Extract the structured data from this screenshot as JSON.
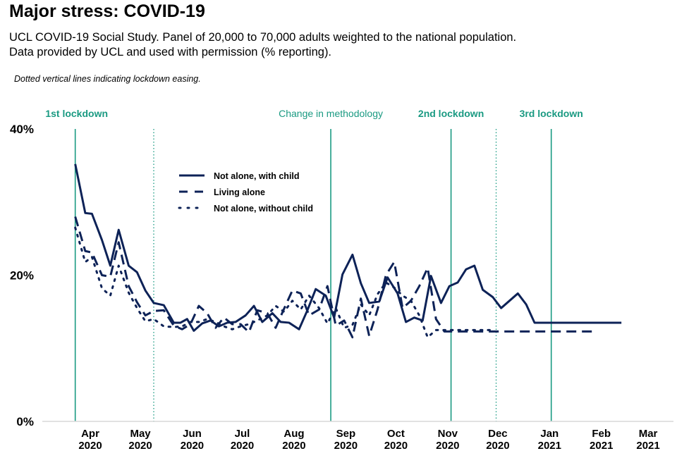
{
  "header": {
    "title": "Major stress: COVID-19",
    "subtitle_line1": "UCL COVID-19 Social Study. Panel of 20,000 to 70,000 adults weighted to the national population.",
    "subtitle_line2": "Data provided by UCL and used with permission (% reporting).",
    "note": "Dotted vertical lines indicating lockdown easing."
  },
  "colors": {
    "series": "#0d2257",
    "event_line": "#1a9a82",
    "axis": "#d9d9d9"
  },
  "chart_data": {
    "type": "line",
    "title": "Major stress: COVID-19",
    "xlabel": "",
    "ylabel": "% reporting",
    "ylim": [
      0,
      40
    ],
    "yticks": [
      {
        "value": 0,
        "label": "0%"
      },
      {
        "value": 20,
        "label": "20%"
      },
      {
        "value": 40,
        "label": "40%"
      }
    ],
    "grid": false,
    "x_unit": "days since 2020-03-01",
    "xlim": [
      10,
      390
    ],
    "xticks": [
      {
        "value": 31,
        "month": "Apr",
        "year": "2020"
      },
      {
        "value": 61,
        "month": "May",
        "year": "2020"
      },
      {
        "value": 92,
        "month": "Jun",
        "year": "2020"
      },
      {
        "value": 122,
        "month": "Jul",
        "year": "2020"
      },
      {
        "value": 153,
        "month": "Aug",
        "year": "2020"
      },
      {
        "value": 184,
        "month": "Sep",
        "year": "2020"
      },
      {
        "value": 214,
        "month": "Oct",
        "year": "2020"
      },
      {
        "value": 245,
        "month": "Nov",
        "year": "2020"
      },
      {
        "value": 275,
        "month": "Dec",
        "year": "2020"
      },
      {
        "value": 306,
        "month": "Jan",
        "year": "2021"
      },
      {
        "value": 337,
        "month": "Feb",
        "year": "2021"
      },
      {
        "value": 365,
        "month": "Mar",
        "year": "2021"
      }
    ],
    "events": [
      {
        "label": "1st lockdown",
        "x": 22,
        "style": "solid",
        "bold": true
      },
      {
        "label": "",
        "x": 69,
        "style": "dotted",
        "bold": false
      },
      {
        "label": "Change in methodology",
        "x": 175,
        "style": "solid",
        "bold": false
      },
      {
        "label": "2nd lockdown",
        "x": 247,
        "style": "solid",
        "bold": true
      },
      {
        "label": "",
        "x": 274,
        "style": "dotted",
        "bold": false
      },
      {
        "label": "3rd lockdown",
        "x": 307,
        "style": "solid",
        "bold": true
      }
    ],
    "legend_placement": "top-left",
    "series": [
      {
        "name": "Not alone, with child",
        "dash": "solid",
        "x": [
          22,
          28,
          32,
          38,
          43,
          48,
          54,
          59,
          64,
          69,
          75,
          81,
          85,
          89,
          93,
          98,
          103,
          108,
          113,
          118,
          124,
          129,
          134,
          140,
          145,
          150,
          156,
          161,
          166,
          172,
          177,
          182,
          188,
          193,
          198,
          204,
          209,
          215,
          220,
          225,
          230,
          235,
          241,
          246,
          251,
          256,
          261,
          266,
          272,
          277,
          282,
          287,
          292,
          297,
          302,
          307,
          313,
          318,
          323,
          329,
          334,
          339,
          344,
          349
        ],
        "values": [
          35.2,
          28.5,
          28.4,
          24.8,
          21.3,
          26.2,
          21.3,
          20.4,
          17.9,
          16.2,
          15.9,
          13.5,
          13.5,
          14.0,
          12.4,
          13.4,
          13.8,
          13.0,
          13.5,
          13.6,
          14.5,
          15.8,
          13.6,
          14.8,
          13.6,
          13.5,
          12.6,
          15.2,
          18.1,
          17.2,
          14.2,
          20.1,
          22.8,
          18.9,
          16.2,
          16.4,
          19.7,
          17.5,
          13.6,
          14.2,
          13.8,
          19.9,
          16.2,
          18.5,
          19.0,
          20.8,
          21.3,
          18.0,
          17.0,
          15.5,
          16.5,
          17.5,
          16.0,
          13.5,
          13.5,
          13.5,
          13.5,
          13.5,
          13.5,
          13.5,
          13.5,
          13.5,
          13.5,
          13.5
        ]
      },
      {
        "name": "Living alone",
        "dash": "dashed",
        "x": [
          22,
          28,
          32,
          38,
          43,
          48,
          54,
          59,
          64,
          69,
          75,
          81,
          86,
          91,
          96,
          101,
          106,
          111,
          116,
          121,
          126,
          131,
          137,
          142,
          147,
          152,
          157,
          162,
          168,
          173,
          178,
          183,
          188,
          193,
          198,
          203,
          208,
          213,
          218,
          223,
          228,
          233,
          238,
          243,
          248,
          253,
          258,
          263,
          268,
          273,
          278,
          283,
          288,
          293,
          298,
          303,
          308,
          313,
          318,
          323,
          328,
          333
        ],
        "values": [
          28.0,
          23.3,
          23.1,
          20.0,
          19.8,
          24.5,
          18.5,
          16.3,
          14.5,
          15.1,
          15.2,
          13.1,
          12.6,
          13.3,
          15.8,
          14.8,
          12.8,
          14.2,
          13.3,
          13.3,
          12.2,
          15.2,
          14.8,
          12.8,
          15.4,
          17.9,
          17.5,
          14.5,
          15.3,
          18.5,
          13.1,
          13.8,
          11.5,
          16.8,
          11.7,
          15.3,
          20.0,
          21.8,
          15.5,
          16.5,
          18.5,
          21.0,
          14.0,
          12.3,
          12.3,
          12.3,
          12.3,
          12.3,
          12.3,
          12.3,
          12.3,
          12.3,
          12.3,
          12.3,
          12.3,
          12.3,
          12.3,
          12.3,
          12.3,
          12.3,
          12.3,
          12.3
        ]
      },
      {
        "name": "Not alone, without child",
        "dash": "dotted",
        "x": [
          22,
          28,
          32,
          38,
          43,
          48,
          54,
          59,
          64,
          69,
          75,
          81,
          86,
          91,
          96,
          101,
          106,
          111,
          116,
          121,
          126,
          131,
          137,
          142,
          147,
          152,
          157,
          162,
          168,
          173,
          178,
          183,
          188,
          193,
          198,
          203,
          208,
          213,
          218,
          223,
          228,
          233,
          238,
          243,
          248,
          253,
          258,
          263,
          268,
          273
        ],
        "values": [
          26.5,
          21.8,
          22.5,
          18.2,
          17.2,
          21.3,
          17.6,
          15.5,
          13.7,
          14.0,
          13.0,
          12.9,
          13.0,
          13.6,
          13.6,
          14.0,
          13.6,
          13.0,
          12.6,
          13.0,
          13.3,
          13.8,
          14.5,
          15.8,
          15.0,
          16.5,
          15.3,
          17.2,
          15.5,
          13.4,
          15.5,
          12.8,
          13.2,
          16.0,
          14.5,
          17.4,
          19.0,
          18.3,
          17.2,
          16.5,
          14.5,
          11.5,
          12.5,
          12.5,
          12.5,
          12.5,
          12.5,
          12.5,
          12.5,
          12.5
        ]
      }
    ]
  }
}
